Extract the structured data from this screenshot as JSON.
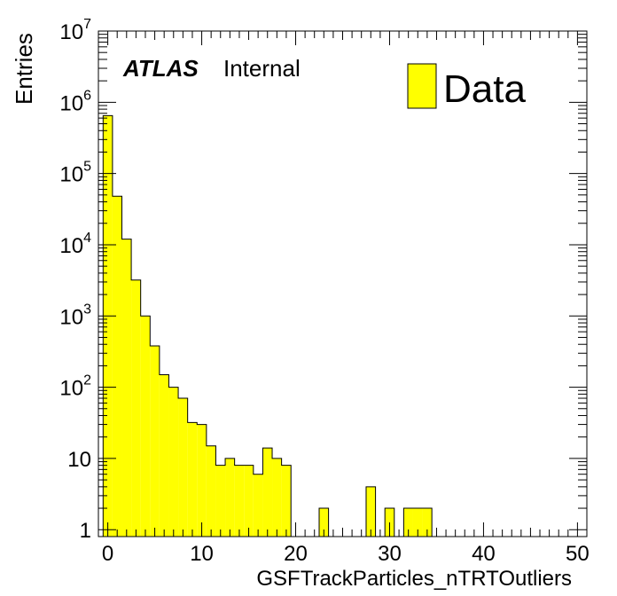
{
  "chart_data": {
    "type": "bar",
    "xlabel": "GSFTrackParticles_nTRTOutliers",
    "ylabel": "Entries",
    "xlim": [
      -1,
      51
    ],
    "ylim": [
      0.8,
      10000000
    ],
    "log_y": true,
    "x_ticks": [
      {
        "value": 0,
        "label": "0"
      },
      {
        "value": 10,
        "label": "10"
      },
      {
        "value": 20,
        "label": "20"
      },
      {
        "value": 30,
        "label": "30"
      },
      {
        "value": 40,
        "label": "40"
      },
      {
        "value": 50,
        "label": "50"
      }
    ],
    "y_ticks": [
      {
        "value": 1,
        "label": "1",
        "exp": ""
      },
      {
        "value": 10,
        "label": "10",
        "exp": ""
      },
      {
        "value": 100,
        "label": "10",
        "exp": "2"
      },
      {
        "value": 1000,
        "label": "10",
        "exp": "3"
      },
      {
        "value": 10000,
        "label": "10",
        "exp": "4"
      },
      {
        "value": 100000,
        "label": "10",
        "exp": "5"
      },
      {
        "value": 1000000,
        "label": "10",
        "exp": "6"
      },
      {
        "value": 10000000,
        "label": "10",
        "exp": "7"
      }
    ],
    "bin_edges_start": -0.5,
    "bin_width": 1,
    "fill_color": "#ffff00",
    "series": [
      {
        "name": "Data",
        "values": [
          650000,
          48000,
          12000,
          3200,
          1000,
          380,
          150,
          100,
          70,
          32,
          30,
          15,
          8,
          10,
          8,
          8,
          6,
          14,
          10,
          8,
          0,
          0,
          0,
          2,
          0,
          0,
          0,
          0,
          4,
          0,
          2,
          0,
          2,
          2,
          2
        ]
      }
    ],
    "legend": {
      "position": "top-right",
      "label": "Data"
    },
    "annotations": {
      "brand": "ATLAS",
      "status": "Internal"
    },
    "grid": false
  }
}
